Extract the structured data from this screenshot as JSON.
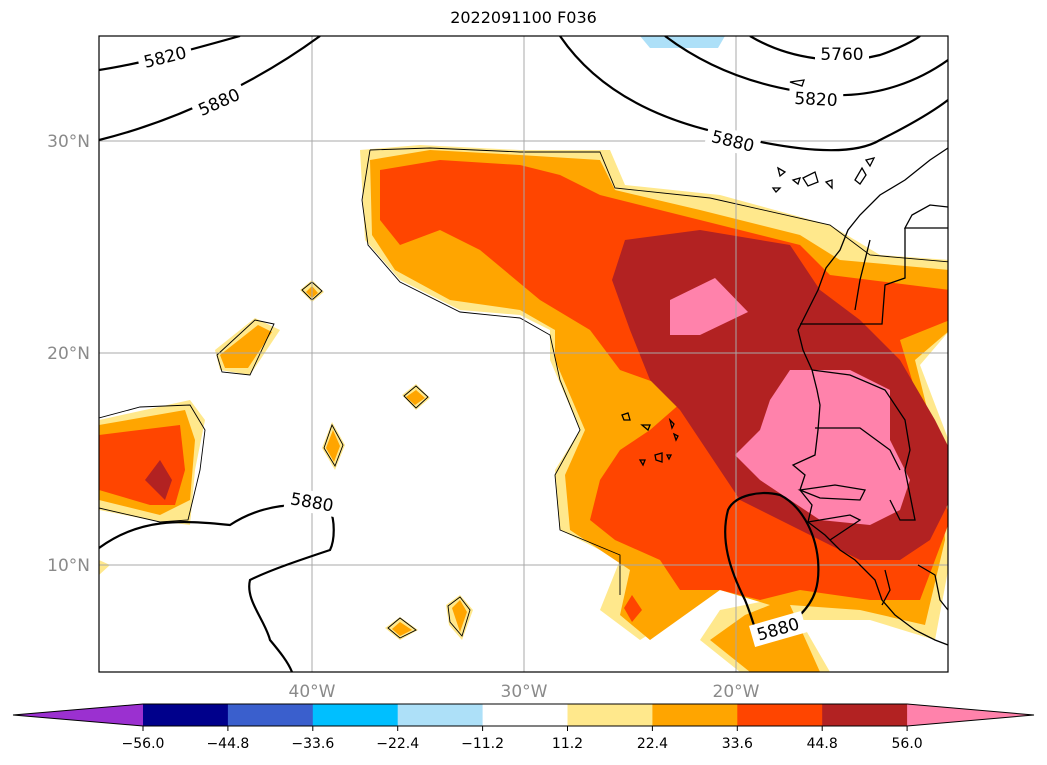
{
  "title": "2022091100 F036",
  "lat_labels": [
    "30°N",
    "20°N",
    "10°N"
  ],
  "lon_labels": [
    "40°W",
    "30°W",
    "20°W"
  ],
  "contour_labels": [
    "5820",
    "5880",
    "5760",
    "5820",
    "5880",
    "5880",
    "5880"
  ],
  "colorbar": {
    "colors": [
      "#9b30d0",
      "#00008b",
      "#3a5fcd",
      "#00bfff",
      "#ade0f8",
      "#ffffff",
      "#ffe88c",
      "#ffa500",
      "#ff4500",
      "#b22222",
      "#ff82ab"
    ],
    "ticks": [
      "−56.0",
      "−44.8",
      "−33.6",
      "−22.4",
      "−11.2",
      "11.2",
      "22.4",
      "33.6",
      "44.8",
      "56.0"
    ]
  }
}
